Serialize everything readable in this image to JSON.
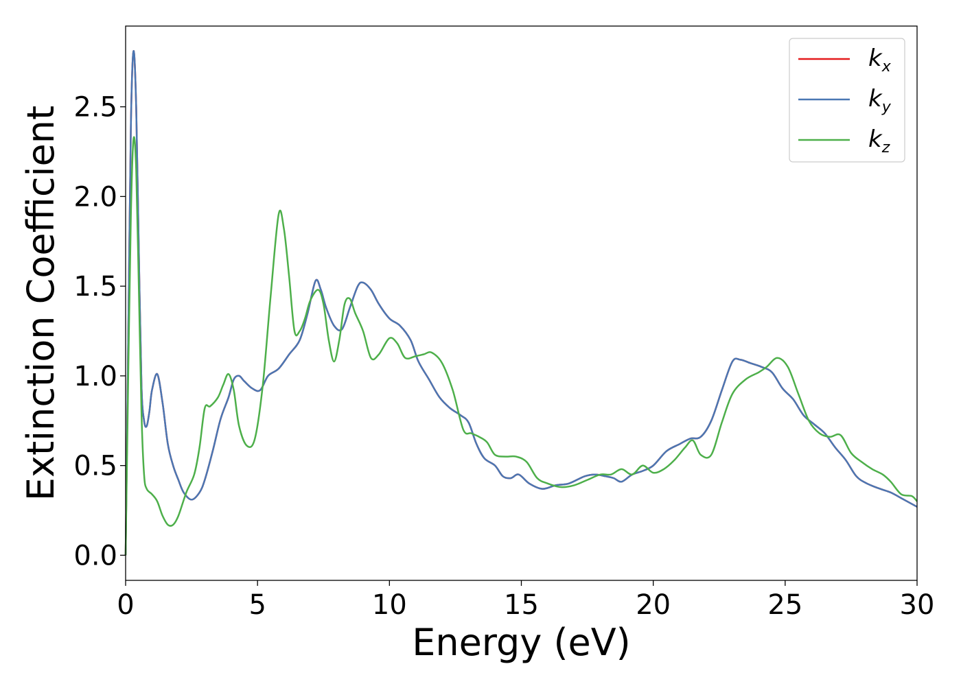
{
  "chart_data": {
    "type": "line",
    "xlabel": "Energy (eV)",
    "ylabel": "Extinction Coefficient",
    "xlim": [
      0,
      30
    ],
    "ylim": [
      -0.14,
      2.95
    ],
    "xticks": [
      0,
      5,
      10,
      15,
      20,
      25,
      30
    ],
    "xtick_labels": [
      "0",
      "5",
      "10",
      "15",
      "20",
      "25",
      "30"
    ],
    "yticks": [
      0.0,
      0.5,
      1.0,
      1.5,
      2.0,
      2.5
    ],
    "ytick_labels": [
      "0.0",
      "0.5",
      "1.0",
      "1.5",
      "2.0",
      "2.5"
    ],
    "grid": false,
    "legend_position": "top-right",
    "series": [
      {
        "name": "k",
        "subscript": "x",
        "color": "#e41a1c",
        "x": [
          0,
          0.1,
          0.2,
          0.3,
          0.4,
          0.5,
          0.6,
          0.7,
          0.8,
          0.9,
          1.0,
          1.2,
          1.4,
          1.6,
          1.8,
          2.0,
          2.2,
          2.5,
          2.8,
          3.0,
          3.3,
          3.6,
          3.9,
          4.1,
          4.3,
          4.5,
          4.8,
          5.1,
          5.4,
          5.8,
          6.2,
          6.6,
          6.9,
          7.2,
          7.4,
          7.6,
          7.9,
          8.2,
          8.5,
          8.8,
          9.0,
          9.3,
          9.6,
          10.0,
          10.4,
          10.8,
          11.1,
          11.5,
          11.9,
          12.3,
          12.7,
          13.0,
          13.3,
          13.6,
          14.0,
          14.3,
          14.6,
          14.9,
          15.3,
          15.8,
          16.3,
          16.8,
          17.4,
          17.8,
          18.2,
          18.5,
          18.8,
          19.2,
          19.6,
          20.0,
          20.5,
          21.0,
          21.4,
          21.8,
          22.2,
          22.6,
          23.0,
          23.3,
          23.7,
          24.1,
          24.5,
          24.9,
          25.3,
          25.7,
          26.1,
          26.5,
          26.9,
          27.3,
          27.7,
          28.1,
          28.6,
          29.0,
          29.5,
          30.0
        ],
        "y": [
          0.0,
          1.2,
          2.4,
          2.81,
          2.5,
          1.7,
          0.95,
          0.75,
          0.72,
          0.8,
          0.92,
          1.01,
          0.85,
          0.62,
          0.5,
          0.42,
          0.35,
          0.31,
          0.35,
          0.42,
          0.58,
          0.76,
          0.88,
          0.98,
          1.0,
          0.97,
          0.93,
          0.92,
          1.0,
          1.04,
          1.12,
          1.2,
          1.35,
          1.53,
          1.48,
          1.38,
          1.28,
          1.26,
          1.38,
          1.5,
          1.52,
          1.48,
          1.4,
          1.32,
          1.28,
          1.2,
          1.08,
          0.98,
          0.88,
          0.82,
          0.78,
          0.74,
          0.62,
          0.54,
          0.5,
          0.44,
          0.43,
          0.45,
          0.4,
          0.37,
          0.39,
          0.4,
          0.44,
          0.45,
          0.44,
          0.43,
          0.41,
          0.45,
          0.47,
          0.5,
          0.58,
          0.62,
          0.65,
          0.66,
          0.75,
          0.92,
          1.08,
          1.09,
          1.07,
          1.05,
          1.02,
          0.93,
          0.87,
          0.78,
          0.73,
          0.68,
          0.6,
          0.53,
          0.44,
          0.4,
          0.37,
          0.35,
          0.31,
          0.27
        ]
      },
      {
        "name": "k",
        "subscript": "y",
        "color": "#4a77b3",
        "x": [
          0,
          0.1,
          0.2,
          0.3,
          0.4,
          0.5,
          0.6,
          0.7,
          0.8,
          0.9,
          1.0,
          1.2,
          1.4,
          1.6,
          1.8,
          2.0,
          2.2,
          2.5,
          2.8,
          3.0,
          3.3,
          3.6,
          3.9,
          4.1,
          4.3,
          4.5,
          4.8,
          5.1,
          5.4,
          5.8,
          6.2,
          6.6,
          6.9,
          7.2,
          7.4,
          7.6,
          7.9,
          8.2,
          8.5,
          8.8,
          9.0,
          9.3,
          9.6,
          10.0,
          10.4,
          10.8,
          11.1,
          11.5,
          11.9,
          12.3,
          12.7,
          13.0,
          13.3,
          13.6,
          14.0,
          14.3,
          14.6,
          14.9,
          15.3,
          15.8,
          16.3,
          16.8,
          17.4,
          17.8,
          18.2,
          18.5,
          18.8,
          19.2,
          19.6,
          20.0,
          20.5,
          21.0,
          21.4,
          21.8,
          22.2,
          22.6,
          23.0,
          23.3,
          23.7,
          24.1,
          24.5,
          24.9,
          25.3,
          25.7,
          26.1,
          26.5,
          26.9,
          27.3,
          27.7,
          28.1,
          28.6,
          29.0,
          29.5,
          30.0
        ],
        "y": [
          0.0,
          1.2,
          2.4,
          2.81,
          2.5,
          1.7,
          0.95,
          0.75,
          0.72,
          0.8,
          0.92,
          1.01,
          0.85,
          0.62,
          0.5,
          0.42,
          0.35,
          0.31,
          0.35,
          0.42,
          0.58,
          0.76,
          0.88,
          0.98,
          1.0,
          0.97,
          0.93,
          0.92,
          1.0,
          1.04,
          1.12,
          1.2,
          1.35,
          1.53,
          1.48,
          1.38,
          1.28,
          1.26,
          1.38,
          1.5,
          1.52,
          1.48,
          1.4,
          1.32,
          1.28,
          1.2,
          1.08,
          0.98,
          0.88,
          0.82,
          0.78,
          0.74,
          0.62,
          0.54,
          0.5,
          0.44,
          0.43,
          0.45,
          0.4,
          0.37,
          0.39,
          0.4,
          0.44,
          0.45,
          0.44,
          0.43,
          0.41,
          0.45,
          0.47,
          0.5,
          0.58,
          0.62,
          0.65,
          0.66,
          0.75,
          0.92,
          1.08,
          1.09,
          1.07,
          1.05,
          1.02,
          0.93,
          0.87,
          0.78,
          0.73,
          0.68,
          0.6,
          0.53,
          0.44,
          0.4,
          0.37,
          0.35,
          0.31,
          0.27
        ]
      },
      {
        "name": "k",
        "subscript": "z",
        "color": "#4daf4a",
        "x": [
          0,
          0.1,
          0.2,
          0.3,
          0.4,
          0.5,
          0.6,
          0.7,
          0.8,
          1.0,
          1.2,
          1.4,
          1.6,
          1.8,
          2.0,
          2.3,
          2.6,
          2.8,
          3.0,
          3.2,
          3.5,
          3.7,
          3.9,
          4.1,
          4.3,
          4.6,
          4.9,
          5.2,
          5.5,
          5.8,
          6.0,
          6.2,
          6.4,
          6.6,
          6.8,
          7.0,
          7.3,
          7.5,
          7.7,
          7.9,
          8.1,
          8.3,
          8.5,
          8.7,
          9.0,
          9.3,
          9.6,
          10.0,
          10.3,
          10.6,
          11.0,
          11.3,
          11.6,
          12.0,
          12.4,
          12.8,
          13.1,
          13.4,
          13.7,
          14.0,
          14.4,
          14.8,
          15.2,
          15.6,
          16.0,
          16.5,
          17.0,
          17.5,
          18.0,
          18.4,
          18.8,
          19.2,
          19.6,
          20.0,
          20.4,
          20.8,
          21.2,
          21.5,
          21.8,
          22.2,
          22.6,
          23.0,
          23.5,
          24.0,
          24.3,
          24.7,
          25.1,
          25.5,
          25.9,
          26.3,
          26.7,
          27.1,
          27.5,
          27.9,
          28.3,
          28.7,
          29.0,
          29.4,
          29.8,
          30.0
        ],
        "y": [
          0.0,
          1.0,
          1.9,
          2.32,
          2.15,
          1.5,
          0.8,
          0.45,
          0.37,
          0.34,
          0.3,
          0.22,
          0.17,
          0.17,
          0.22,
          0.35,
          0.45,
          0.6,
          0.82,
          0.83,
          0.88,
          0.95,
          1.01,
          0.92,
          0.72,
          0.61,
          0.65,
          0.95,
          1.45,
          1.9,
          1.82,
          1.55,
          1.25,
          1.25,
          1.32,
          1.42,
          1.48,
          1.4,
          1.2,
          1.08,
          1.2,
          1.4,
          1.43,
          1.35,
          1.25,
          1.1,
          1.12,
          1.21,
          1.18,
          1.1,
          1.11,
          1.12,
          1.13,
          1.07,
          0.92,
          0.7,
          0.68,
          0.66,
          0.63,
          0.56,
          0.55,
          0.55,
          0.52,
          0.43,
          0.4,
          0.38,
          0.39,
          0.42,
          0.45,
          0.45,
          0.48,
          0.45,
          0.5,
          0.46,
          0.48,
          0.53,
          0.6,
          0.64,
          0.56,
          0.56,
          0.74,
          0.9,
          0.98,
          1.02,
          1.05,
          1.1,
          1.05,
          0.9,
          0.75,
          0.68,
          0.66,
          0.67,
          0.57,
          0.52,
          0.48,
          0.45,
          0.41,
          0.34,
          0.33,
          0.3
        ]
      }
    ]
  }
}
